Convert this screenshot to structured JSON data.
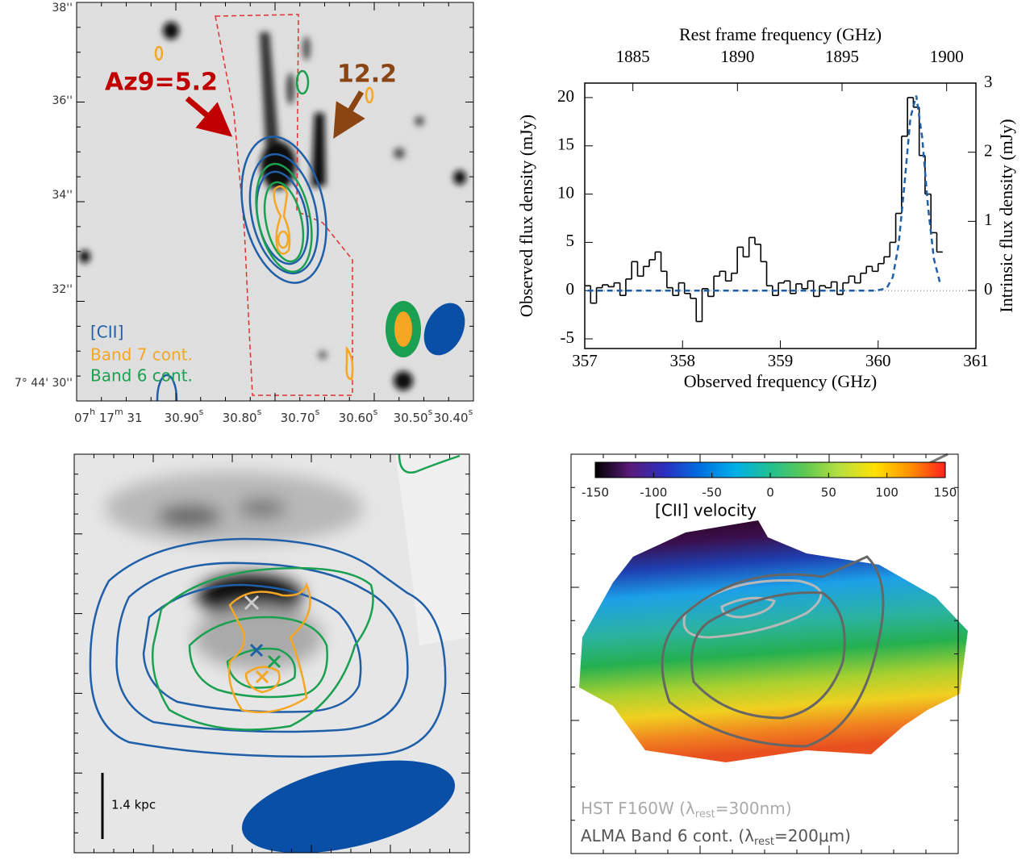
{
  "image_a": {
    "annotations": [
      "Az9=5.2",
      "12.2"
    ],
    "legend": [
      "[CII]",
      "Band 7 cont.",
      "Band 6 cont."
    ],
    "dec_labels": [
      "38''",
      "36''",
      "34''",
      "32''",
      "7° 44' 30''"
    ],
    "ra_prefix": [
      "07",
      "h",
      " 17",
      "m",
      " 31"
    ],
    "ra_labels": [
      "30.90",
      "30.80",
      "30.70",
      "30.60",
      "30.50",
      "30.40"
    ],
    "ra_unit": "s"
  },
  "image_c": {
    "scale_bar": "1.4 kpc"
  },
  "image_d": {
    "legend": [
      {
        "text": "HST F160W (λ",
        "sub": "rest",
        "tail": "=300nm)"
      },
      {
        "text": "ALMA Band 6 cont. (λ",
        "sub": "rest",
        "tail": "=200μm)"
      }
    ]
  },
  "chart_data": [
    {
      "type": "step",
      "xlabel": "Observed frequency (GHz)",
      "ylabel": "Observed flux density (mJy)",
      "y2label": "Intrinsic flux density (mJy)",
      "x2label": "Rest frame frequency (GHz)",
      "xlim": [
        357,
        361
      ],
      "xticks": [
        357,
        358,
        359,
        360,
        361
      ],
      "ylim": [
        -6,
        21.5
      ],
      "yticks": [
        -5,
        0,
        5,
        10,
        15,
        20
      ],
      "y2lim": [
        -0.84,
        3.0
      ],
      "y2ticks": [
        0,
        1,
        2,
        3
      ],
      "x2lim": [
        1882.7,
        1901.4
      ],
      "x2ticks": [
        1885,
        1890,
        1895,
        1900
      ],
      "x": [
        357.03,
        357.09,
        357.15,
        357.21,
        357.27,
        357.33,
        357.39,
        357.45,
        357.51,
        357.57,
        357.63,
        357.69,
        357.75,
        357.81,
        357.87,
        357.93,
        357.99,
        358.05,
        358.11,
        358.17,
        358.23,
        358.29,
        358.35,
        358.41,
        358.47,
        358.53,
        358.59,
        358.65,
        358.71,
        358.77,
        358.83,
        358.89,
        358.95,
        359.01,
        359.07,
        359.13,
        359.19,
        359.25,
        359.31,
        359.37,
        359.43,
        359.49,
        359.55,
        359.61,
        359.67,
        359.73,
        359.79,
        359.85,
        359.91,
        359.97,
        360.03,
        360.09,
        360.15,
        360.21,
        360.27,
        360.33,
        360.39,
        360.45,
        360.51,
        360.57,
        360.63
      ],
      "series": [
        {
          "color": "#000000",
          "values": [
            0.5,
            -1.3,
            0.3,
            0.6,
            0.4,
            0.8,
            -0.5,
            1.2,
            3.0,
            1.5,
            2.5,
            3.2,
            4.0,
            2.0,
            0.3,
            -0.5,
            0.8,
            -0.3,
            -0.8,
            -3.2,
            0.2,
            -0.6,
            1.5,
            2.0,
            1.0,
            1.8,
            4.5,
            3.5,
            5.5,
            4.8,
            3.0,
            0.5,
            -0.5,
            0.8,
            1.0,
            -0.3,
            0.7,
            0.2,
            1.0,
            -0.6,
            0.5,
            0.3,
            0.9,
            -0.4,
            0.8,
            1.5,
            0.8,
            1.8,
            2.5,
            2.0,
            2.8,
            3.5,
            5.0,
            8.0,
            16.0,
            20.0,
            19.0,
            14.0,
            10.0,
            6.0,
            4.0
          ]
        },
        {
          "color": "#1f5fa8",
          "dashed": true,
          "values": [
            0,
            0,
            0,
            0,
            0,
            0,
            0,
            0,
            0,
            0,
            0,
            0,
            0,
            0,
            0,
            0,
            0,
            0,
            0,
            0,
            0,
            0,
            0,
            0,
            0,
            0,
            0,
            0,
            0,
            0,
            0,
            0,
            0,
            0,
            0,
            0,
            0,
            0,
            0,
            0,
            0,
            0,
            0,
            0,
            0,
            0,
            0,
            0,
            0,
            0,
            0.1,
            0.3,
            1.4,
            4.8,
            11.1,
            17.9,
            20.2,
            15.9,
            8.7,
            3.3,
            0.9
          ]
        }
      ]
    },
    {
      "type": "colorbar",
      "label": "[CII] velocity",
      "xlim": [
        -150,
        150
      ],
      "xticks": [
        -150,
        -100,
        -50,
        0,
        50,
        100,
        150
      ],
      "colormap": [
        "#000000",
        "#5a1a7a",
        "#2a30c0",
        "#0070e0",
        "#00b0e8",
        "#20c090",
        "#60c850",
        "#b8e040",
        "#ffe000",
        "#ff9000",
        "#ff2020"
      ]
    }
  ]
}
